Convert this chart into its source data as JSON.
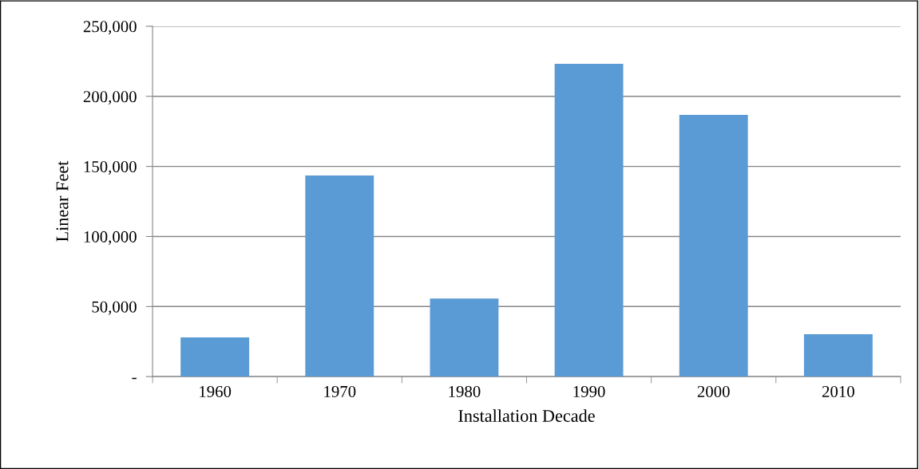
{
  "chart_data": {
    "type": "bar",
    "xlabel": "Installation Decade",
    "ylabel": "Linear Feet",
    "categories": [
      "1960",
      "1970",
      "1980",
      "1990",
      "2000",
      "2010"
    ],
    "values": [
      28000,
      143500,
      55800,
      223200,
      186800,
      30200
    ],
    "color": "#5b9bd5",
    "ylim": [
      0,
      250000
    ],
    "yticks": [
      {
        "value": 0,
        "label": "-"
      },
      {
        "value": 50000,
        "label": "50,000"
      },
      {
        "value": 100000,
        "label": "100,000"
      },
      {
        "value": 150000,
        "label": "150,000"
      },
      {
        "value": 200000,
        "label": "200,000"
      },
      {
        "value": 250000,
        "label": "250,000"
      }
    ],
    "grid": "y",
    "legend": false
  }
}
